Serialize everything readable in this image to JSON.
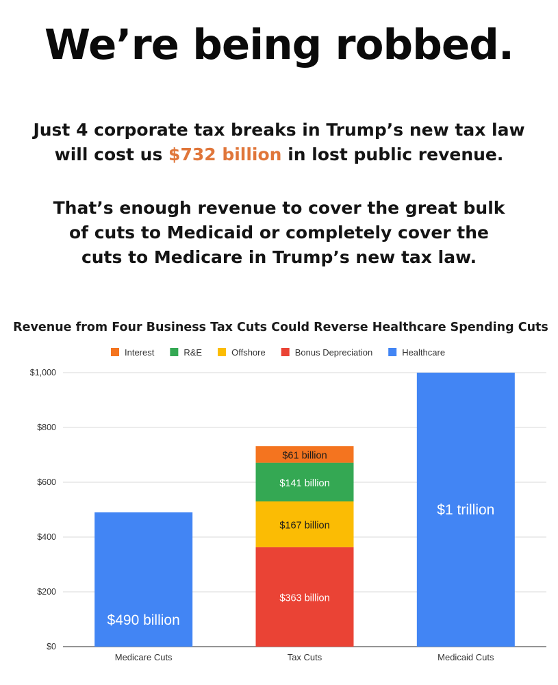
{
  "headline": "We’re being robbed.",
  "paragraph1": {
    "line1": "Just 4 corporate tax breaks in Trump’s new tax law",
    "line2_before": "will cost us ",
    "line2_highlight": "$732 billion",
    "line2_after": " in lost public revenue."
  },
  "paragraph2": {
    "line1": "That’s enough revenue to cover the great bulk",
    "line2": "of cuts to Medicaid or completely cover the",
    "line3": "cuts to Medicare in Trump’s new tax law."
  },
  "colors": {
    "highlight": "#e0763a",
    "interest": "#f4741f",
    "rnd": "#34a853",
    "offshore": "#fbbc04",
    "bonus_depreciation": "#ea4335",
    "healthcare": "#4285f4"
  },
  "chart_data": {
    "type": "bar",
    "stacked": true,
    "title": "Revenue from Four Business Tax Cuts Could Reverse Healthcare Spending Cuts",
    "legend_position": "top",
    "grid": true,
    "categories": [
      "Medicare Cuts",
      "Tax Cuts",
      "Medicaid Cuts"
    ],
    "ylim": [
      0,
      1000
    ],
    "yticks": [
      0,
      200,
      400,
      600,
      800,
      1000
    ],
    "ytick_labels": [
      "$0",
      "$200",
      "$400",
      "$600",
      "$800",
      "$1,000"
    ],
    "xlabel": "",
    "ylabel": "",
    "series": [
      {
        "name": "Bonus Depreciation",
        "color": "#ea4335",
        "values": [
          0,
          363,
          0
        ],
        "labels": [
          "",
          "$363 billion",
          ""
        ]
      },
      {
        "name": "Offshore",
        "color": "#fbbc04",
        "values": [
          0,
          167,
          0
        ],
        "labels": [
          "",
          "$167 billion",
          ""
        ]
      },
      {
        "name": "R&E",
        "color": "#34a853",
        "values": [
          0,
          141,
          0
        ],
        "labels": [
          "",
          "$141 billion",
          ""
        ]
      },
      {
        "name": "Interest",
        "color": "#f4741f",
        "values": [
          0,
          61,
          0
        ],
        "labels": [
          "",
          "$61 billion",
          ""
        ]
      },
      {
        "name": "Healthcare",
        "color": "#4285f4",
        "values": [
          490,
          0,
          1000
        ],
        "labels": [
          "$490 billion",
          "",
          "$1 trillion"
        ]
      }
    ],
    "legend_order": [
      "Interest",
      "R&E",
      "Offshore",
      "Bonus Depreciation",
      "Healthcare"
    ]
  }
}
